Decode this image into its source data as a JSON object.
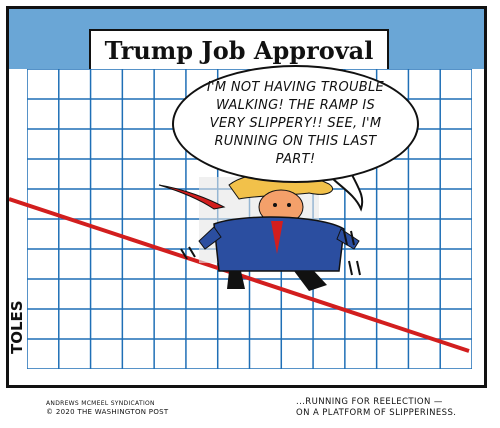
{
  "cartoon": {
    "title": "Trump Job Approval",
    "speech_lines": [
      "I'M NOT HAVING TROUBLE",
      "WALKING! THE RAMP IS",
      "VERY SLIPPERY!! SEE, I'M",
      "RUNNING ON THIS LAST PART!"
    ],
    "signature": "TOLES",
    "credit_syndication": "ANDREWS MCMEEL SYNDICATION",
    "credit_copyright": "© 2020 THE WASHINGTON POST",
    "caption_lines": [
      "...RUNNING FOR REELECTION —",
      "ON A PLATFORM OF SLIPPERINESS."
    ],
    "colors": {
      "header": "#6aa6d6",
      "trend_line": "#d21e1e",
      "grid": "#1f6fb6",
      "suit": "#2b4ea0",
      "hair": "#f2c14a",
      "skin": "#f4a06a",
      "tie": "#d21e1e"
    }
  }
}
